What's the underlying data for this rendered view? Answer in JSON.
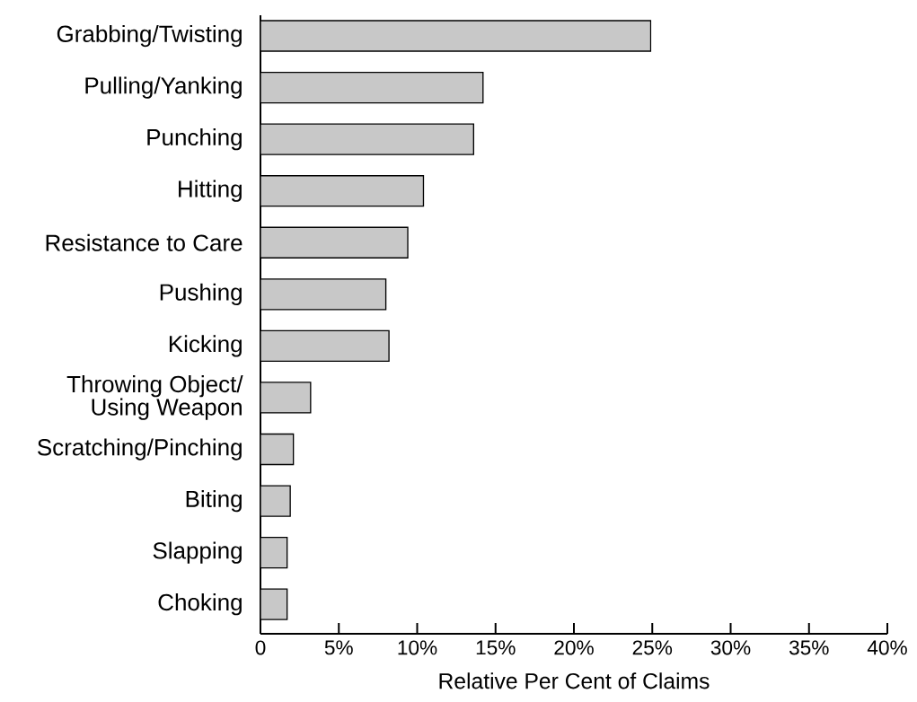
{
  "chart_data": {
    "type": "bar",
    "orientation": "horizontal",
    "xlabel": "Relative Per Cent of Claims",
    "categories": [
      "Grabbing/Twisting",
      "Pulling/Yanking",
      "Punching",
      "Hitting",
      "Resistance to Care",
      "Pushing",
      "Kicking",
      "Throwing Object/ Using Weapon",
      "Scratching/Pinching",
      "Biting",
      "Slapping",
      "Choking"
    ],
    "values": [
      24.9,
      14.2,
      13.6,
      10.4,
      9.4,
      8.0,
      8.2,
      3.2,
      2.1,
      1.9,
      1.7,
      1.7
    ],
    "color": "#c8c8c8",
    "xlim": [
      0,
      40
    ],
    "xticks": [
      0,
      {
        "value": 5,
        "label": "5%"
      },
      {
        "value": 10,
        "label": "10%"
      },
      {
        "value": 15,
        "label": "15%"
      },
      {
        "value": 20,
        "label": "20%"
      },
      {
        "value": 25,
        "label": "25%"
      },
      {
        "value": 30,
        "label": "30%"
      },
      {
        "value": 35,
        "label": "35%"
      },
      {
        "value": 40,
        "label": "40%"
      }
    ],
    "grid": false
  }
}
